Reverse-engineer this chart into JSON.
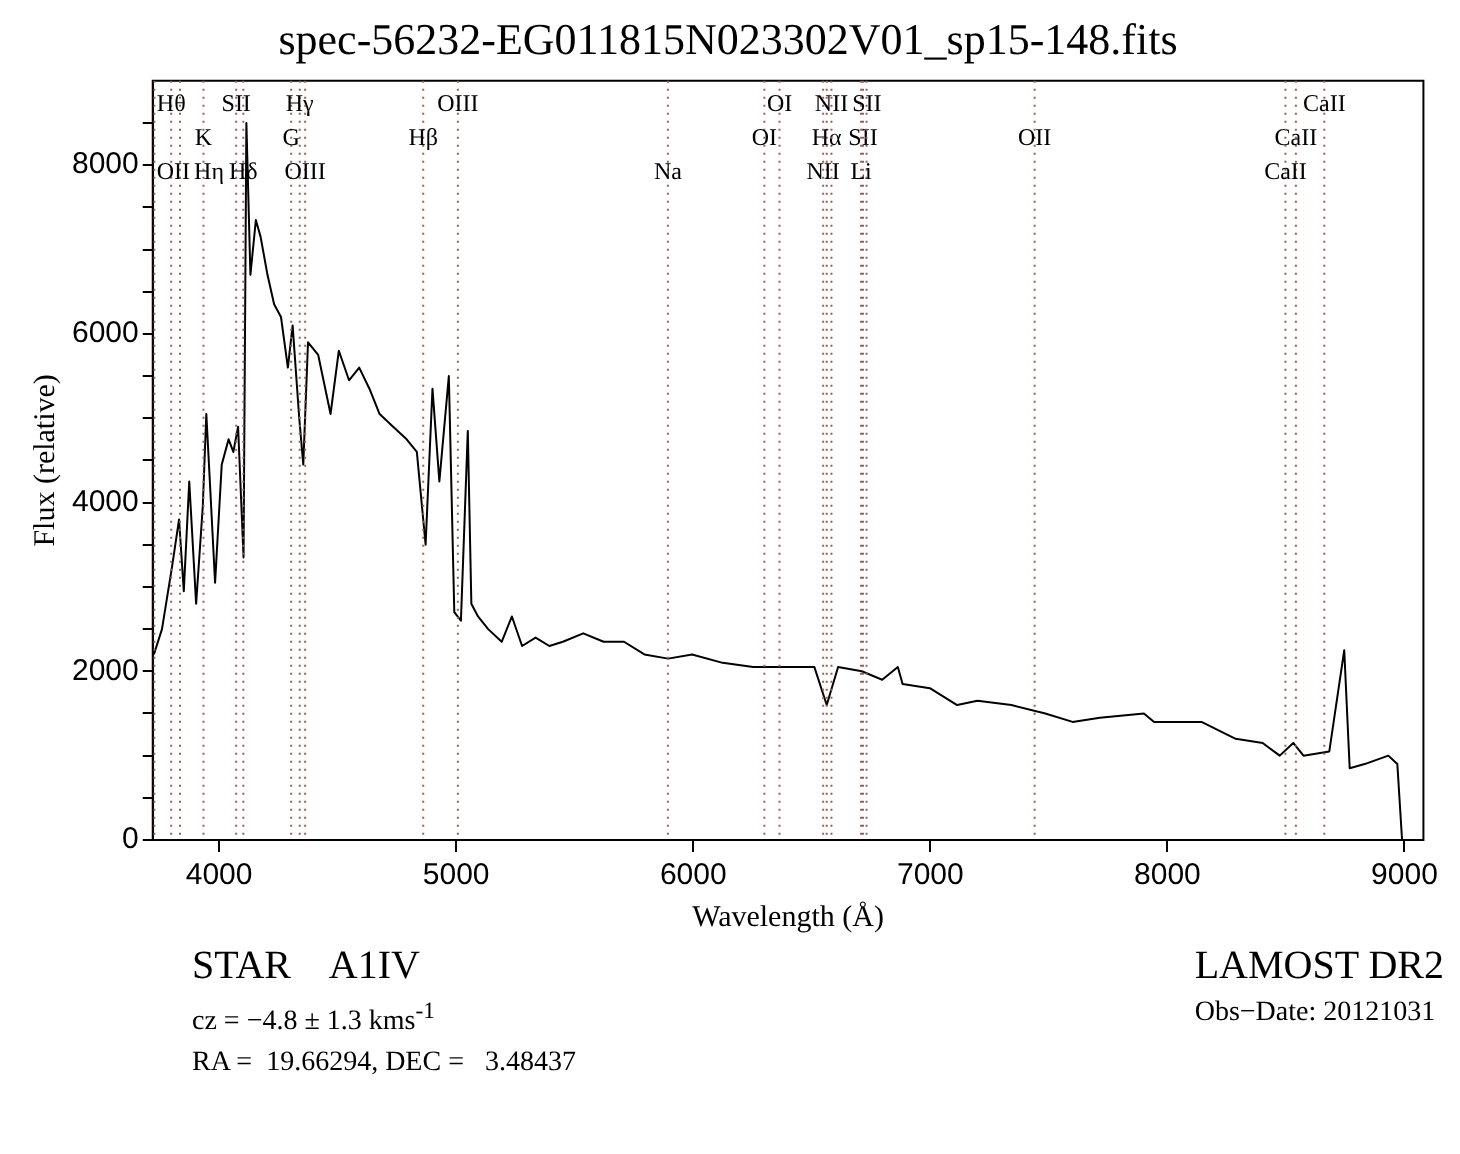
{
  "chart_data": {
    "type": "line",
    "title": "spec-56232-EG011815N023302V01_sp15-148.fits",
    "xlabel": "Wavelength (Å)",
    "ylabel": "Flux (relative)",
    "xlim": [
      3720,
      9080
    ],
    "ylim": [
      0,
      9000
    ],
    "xticks": [
      4000,
      5000,
      6000,
      7000,
      8000,
      9000
    ],
    "yticks": [
      0,
      {
        "value": 500,
        "label": null
      },
      {
        "value": 1000,
        "label": null
      },
      {
        "value": 1500,
        "label": null
      },
      2000,
      {
        "value": 2500,
        "label": null
      },
      {
        "value": 3000,
        "label": null
      },
      {
        "value": 3500,
        "label": null
      },
      4000,
      {
        "value": 4500,
        "label": null
      },
      {
        "value": 5000,
        "label": null
      },
      {
        "value": 5500,
        "label": null
      },
      6000,
      {
        "value": 6500,
        "label": null
      },
      {
        "value": 7000,
        "label": null
      },
      {
        "value": 7500,
        "label": null
      },
      8000,
      {
        "value": 8500,
        "label": null
      }
    ],
    "grid": false,
    "legend": false,
    "marker": "none",
    "line_style": "solid",
    "x": [
      3725,
      3759,
      3802,
      3831,
      3851,
      3874,
      3903,
      3931,
      3946,
      3960,
      3983,
      4011,
      4040,
      4060,
      4080,
      4103,
      4115,
      4132,
      4155,
      4175,
      4204,
      4232,
      4261,
      4290,
      4310,
      4338,
      4355,
      4375,
      4418,
      4470,
      4505,
      4548,
      4591,
      4634,
      4677,
      4734,
      4791,
      4834,
      4871,
      4900,
      4929,
      4969,
      4992,
      5020,
      5049,
      5064,
      5092,
      5135,
      5192,
      5235,
      5278,
      5335,
      5393,
      5450,
      5536,
      5622,
      5708,
      5794,
      5894,
      5995,
      6124,
      6253,
      6396,
      6511,
      6563,
      6611,
      6711,
      6797,
      6863,
      6883,
      6998,
      7113,
      7199,
      7342,
      7485,
      7600,
      7715,
      7901,
      7944,
      8144,
      8288,
      8402,
      8474,
      8531,
      8574,
      8683,
      8746,
      8769,
      8832,
      8932,
      8970,
      8990
    ],
    "series": [
      {
        "color": "#000000",
        "values": [
          2200,
          2500,
          3250,
          3800,
          2950,
          4250,
          2800,
          3950,
          5050,
          4300,
          3050,
          4450,
          4750,
          4600,
          4900,
          3350,
          8500,
          6700,
          7350,
          7150,
          6700,
          6350,
          6200,
          5600,
          6100,
          5000,
          4450,
          5900,
          5750,
          5050,
          5800,
          5450,
          5600,
          5350,
          5050,
          4900,
          4750,
          4600,
          3500,
          5350,
          4250,
          5500,
          2700,
          2600,
          4850,
          2800,
          2650,
          2500,
          2350,
          2650,
          2300,
          2400,
          2300,
          2350,
          2450,
          2350,
          2350,
          2200,
          2150,
          2200,
          2100,
          2050,
          2050,
          2050,
          1600,
          2050,
          2000,
          1900,
          2050,
          1850,
          1800,
          1600,
          1650,
          1600,
          1500,
          1400,
          1450,
          1500,
          1400,
          1400,
          1200,
          1150,
          1000,
          1150,
          1000,
          1050,
          2250,
          850,
          900,
          1000,
          900,
          0
        ]
      }
    ],
    "ref_lines": [
      {
        "axis": "x",
        "value": 3798,
        "label": "Hθ",
        "color": "#a05a5a",
        "line_style": "dotted"
      },
      {
        "axis": "x",
        "value": 3934,
        "label": "K",
        "color": "#a05a5a",
        "line_style": "dotted"
      },
      {
        "axis": "x",
        "value": 3727,
        "label": "OII",
        "color": "#a05a5a",
        "line_style": "dotted"
      },
      {
        "axis": "x",
        "value": 4072,
        "label": "SII",
        "color": "#a05a5a",
        "line_style": "dotted"
      },
      {
        "axis": "x",
        "value": 4304,
        "label": "G",
        "color": "#a05a5a",
        "line_style": "dotted"
      },
      {
        "axis": "x",
        "value": 3835,
        "label": "Hη",
        "color": "#a05a5a",
        "line_style": "dotted"
      },
      {
        "axis": "x",
        "value": 4340,
        "label": "Hγ",
        "color": "#a05a5a",
        "line_style": "dotted"
      },
      {
        "axis": "x",
        "value": 4861,
        "label": "Hβ",
        "color": "#a05a5a",
        "line_style": "dotted"
      },
      {
        "axis": "x",
        "value": 4102,
        "label": "Hδ",
        "color": "#a05a5a",
        "line_style": "dotted"
      },
      {
        "axis": "x",
        "value": 5007,
        "label": "OIII",
        "color": "#a05a5a",
        "line_style": "dotted"
      },
      {
        "axis": "x",
        "value": 6300,
        "label": "OI",
        "color": "#a05a5a",
        "line_style": "dotted"
      },
      {
        "axis": "x",
        "value": 4363,
        "label": "OIII",
        "color": "#a05a5a",
        "line_style": "dotted"
      },
      {
        "axis": "x",
        "value": 6364,
        "label": "OI",
        "color": "#a05a5a",
        "line_style": "dotted"
      },
      {
        "axis": "x",
        "value": 6563,
        "label": "Hα",
        "color": "#a05a5a",
        "line_style": "dotted"
      },
      {
        "axis": "x",
        "value": 5893,
        "label": "Na",
        "color": "#a05a5a",
        "line_style": "dotted"
      },
      {
        "axis": "x",
        "value": 6583,
        "label": "NII",
        "color": "#a05a5a",
        "line_style": "dotted"
      },
      {
        "axis": "x",
        "value": 6716,
        "label": "SII",
        "color": "#a05a5a",
        "line_style": "dotted"
      },
      {
        "axis": "x",
        "value": 6548,
        "label": "NII",
        "color": "#a05a5a",
        "line_style": "dotted"
      },
      {
        "axis": "x",
        "value": 6731,
        "label": "SII",
        "color": "#a05a5a",
        "line_style": "dotted"
      },
      {
        "axis": "x",
        "value": 7440,
        "label": "OII",
        "color": "#a05a5a",
        "line_style": "dotted"
      },
      {
        "axis": "x",
        "value": 6708,
        "label": "Li",
        "color": "#a05a5a",
        "line_style": "dotted"
      },
      {
        "axis": "x",
        "value": 8662,
        "label": "CaII",
        "color": "#a05a5a",
        "line_style": "dotted"
      },
      {
        "axis": "x",
        "value": 8542,
        "label": "CaII",
        "color": "#a05a5a",
        "line_style": "dotted"
      },
      {
        "axis": "x",
        "value": 8498,
        "label": "CaII",
        "color": "#a05a5a",
        "line_style": "dotted"
      }
    ],
    "annotations": [
      "STAR    A1IV",
      "LAMOST DR2",
      "cz = −4.8 ± 1.3 kms$^{-1}$",
      "Obs−Date: 20121031",
      "RA =  19.66294, DEC =   3.48437"
    ]
  }
}
